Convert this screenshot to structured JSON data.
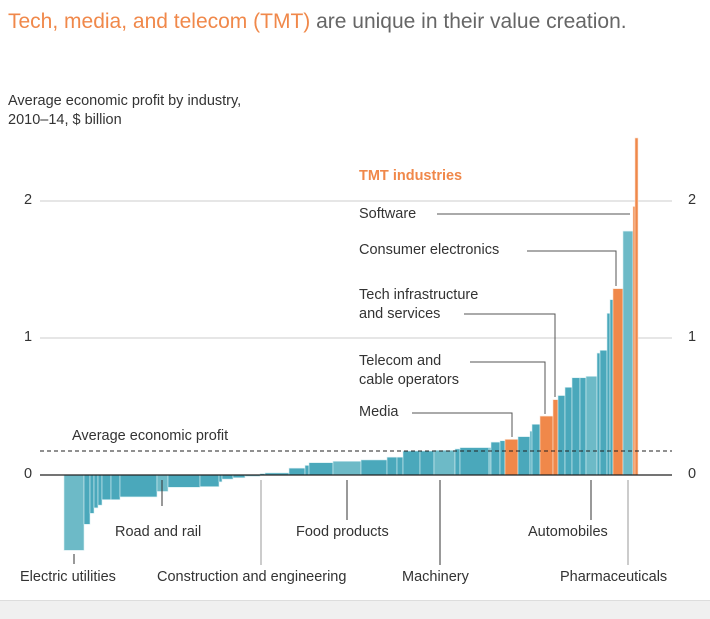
{
  "title": {
    "highlight": "Tech, media, and telecom (TMT)",
    "rest": " are unique in their value creation."
  },
  "subtitle": {
    "line1": "Average economic profit by industry,",
    "line2": "2010–14, $ billion"
  },
  "colors": {
    "dark": "#4aa8bb",
    "light": "#6dbac7",
    "tmt": "#f0884a",
    "title_accent": "#f0884a"
  },
  "chart_data": {
    "type": "bar",
    "title": "Average economic profit by industry, 2010–14, $ billion",
    "ylabel": "$ billion",
    "ylim": [
      -0.6,
      2.5
    ],
    "yticks": [
      "0",
      "1",
      "2"
    ],
    "ytick_values": [
      0,
      1,
      2
    ],
    "average_economic_profit": 0.175,
    "average_label": "Average economic profit",
    "legend": "TMT industries",
    "bars": [
      {
        "weight": 20,
        "value": -0.55,
        "group": "light"
      },
      {
        "weight": 6,
        "value": -0.36,
        "group": "dark"
      },
      {
        "weight": 4,
        "value": -0.28,
        "group": "dark"
      },
      {
        "weight": 4,
        "value": -0.24,
        "group": "dark"
      },
      {
        "weight": 4,
        "value": -0.22,
        "group": "dark"
      },
      {
        "weight": 9,
        "value": -0.18,
        "group": "dark"
      },
      {
        "weight": 9,
        "value": -0.18,
        "group": "dark"
      },
      {
        "weight": 37,
        "value": -0.16,
        "group": "dark"
      },
      {
        "weight": 11,
        "value": -0.12,
        "group": "light"
      },
      {
        "weight": 32,
        "value": -0.09,
        "group": "dark"
      },
      {
        "weight": 19,
        "value": -0.085,
        "group": "dark"
      },
      {
        "weight": 3,
        "value": -0.05,
        "group": "dark"
      },
      {
        "weight": 11,
        "value": -0.03,
        "group": "dark"
      },
      {
        "weight": 12,
        "value": -0.02,
        "group": "dark"
      },
      {
        "weight": 15,
        "value": -0.01,
        "group": "light"
      },
      {
        "weight": 5,
        "value": 0.01,
        "group": "dark"
      },
      {
        "weight": 24,
        "value": 0.015,
        "group": "dark"
      },
      {
        "weight": 16,
        "value": 0.05,
        "group": "dark"
      },
      {
        "weight": 4,
        "value": 0.07,
        "group": "dark"
      },
      {
        "weight": 24,
        "value": 0.09,
        "group": "dark"
      },
      {
        "weight": 28,
        "value": 0.1,
        "group": "light"
      },
      {
        "weight": 26,
        "value": 0.11,
        "group": "dark"
      },
      {
        "weight": 10,
        "value": 0.13,
        "group": "dark"
      },
      {
        "weight": 6,
        "value": 0.13,
        "group": "dark"
      },
      {
        "weight": 17,
        "value": 0.175,
        "group": "dark"
      },
      {
        "weight": 14,
        "value": 0.175,
        "group": "dark"
      },
      {
        "weight": 21,
        "value": 0.18,
        "group": "light"
      },
      {
        "weight": 5,
        "value": 0.19,
        "group": "dark"
      },
      {
        "weight": 29,
        "value": 0.2,
        "group": "dark"
      },
      {
        "weight": 2,
        "value": 0.2,
        "group": "light"
      },
      {
        "weight": 9,
        "value": 0.24,
        "group": "dark"
      },
      {
        "weight": 5,
        "value": 0.25,
        "group": "dark"
      },
      {
        "weight": 13,
        "value": 0.26,
        "group": "tmt",
        "name": "Media"
      },
      {
        "weight": 12,
        "value": 0.28,
        "group": "dark"
      },
      {
        "weight": 2,
        "value": 0.32,
        "group": "dark"
      },
      {
        "weight": 8,
        "value": 0.37,
        "group": "dark"
      },
      {
        "weight": 13,
        "value": 0.43,
        "group": "tmt",
        "name": "Telecom and cable operators"
      },
      {
        "weight": 5,
        "value": 0.55,
        "group": "tmt",
        "name": "Tech infrastructure and services"
      },
      {
        "weight": 7,
        "value": 0.58,
        "group": "dark"
      },
      {
        "weight": 7,
        "value": 0.64,
        "group": "dark"
      },
      {
        "weight": 8,
        "value": 0.71,
        "group": "dark"
      },
      {
        "weight": 6,
        "value": 0.71,
        "group": "dark"
      },
      {
        "weight": 11,
        "value": 0.72,
        "group": "light"
      },
      {
        "weight": 3,
        "value": 0.89,
        "group": "dark"
      },
      {
        "weight": 7,
        "value": 0.91,
        "group": "dark"
      },
      {
        "weight": 3,
        "value": 1.18,
        "group": "dark"
      },
      {
        "weight": 3,
        "value": 1.28,
        "group": "dark"
      },
      {
        "weight": 10,
        "value": 1.36,
        "group": "tmt",
        "name": "Consumer electronics"
      },
      {
        "weight": 10,
        "value": 1.78,
        "group": "light",
        "name": "Pharmaceuticals"
      },
      {
        "weight": 2,
        "value": 1.96,
        "group": "tmt",
        "name": "Software"
      },
      {
        "weight": 3,
        "value": 2.46,
        "group": "tmt"
      }
    ],
    "tmt_callouts": [
      "Software",
      "Consumer electronics",
      "Tech infrastructure",
      "and services",
      "Telecom and",
      "cable operators",
      "Media"
    ],
    "industry_labels": [
      "Electric utilities",
      "Road and rail",
      "Construction and engineering",
      "Food products",
      "Machinery",
      "Automobiles",
      "Pharmaceuticals"
    ]
  }
}
